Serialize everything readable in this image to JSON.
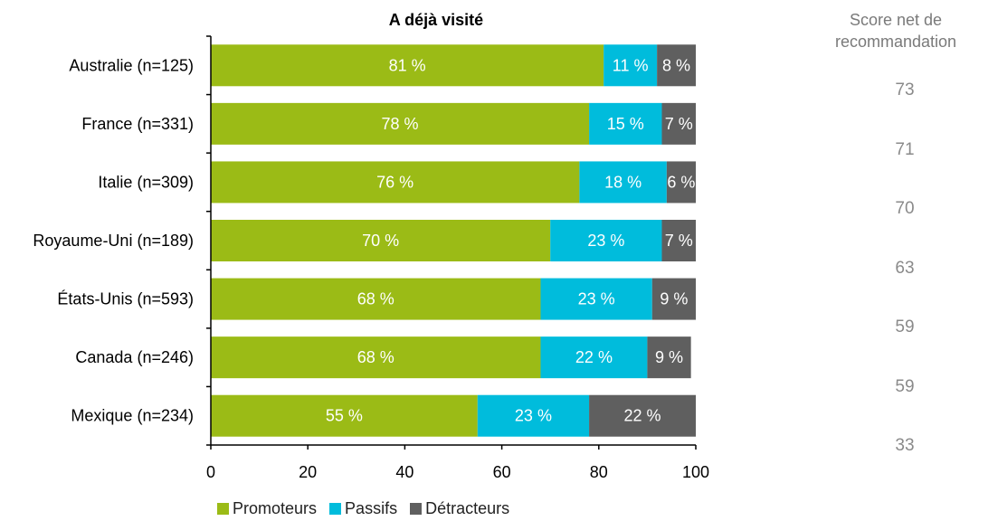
{
  "chart_data": {
    "type": "bar",
    "orientation": "horizontal",
    "stacked": true,
    "title": "A déjà visité",
    "categories": [
      "Australie (n=125)",
      "France (n=331)",
      "Italie (n=309)",
      "Royaume-Uni (n=189)",
      "États-Unis (n=593)",
      "Canada (n=246)",
      "Mexique (n=234)"
    ],
    "series": [
      {
        "name": "Promoteurs",
        "color": "#9bbb16",
        "values": [
          81,
          78,
          76,
          70,
          68,
          68,
          55
        ],
        "labels": [
          "81 %",
          "78 %",
          "76 %",
          "70 %",
          "68 %",
          "68 %",
          "55 %"
        ]
      },
      {
        "name": "Passifs",
        "color": "#00bcdc",
        "values": [
          11,
          15,
          18,
          23,
          23,
          22,
          23
        ],
        "labels": [
          "11 %",
          "15 %",
          "18 %",
          "23 %",
          "23 %",
          "22 %",
          "23 %"
        ]
      },
      {
        "name": "Détracteurs",
        "color": "#5f5f5f",
        "values": [
          8,
          7,
          6,
          7,
          9,
          9,
          22
        ],
        "labels": [
          "8 %",
          "7 %",
          "6 %",
          "7 %",
          "9 %",
          "9 %",
          "22 %"
        ]
      }
    ],
    "xlim": [
      0,
      100
    ],
    "xticks": [
      "0",
      "20",
      "40",
      "60",
      "80",
      "100"
    ],
    "xlabel": "",
    "ylabel": "",
    "grid": false,
    "legend_position": "bottom"
  },
  "nps": {
    "header_line1": "Score net de",
    "header_line2": "recommandation",
    "values": [
      "73",
      "71",
      "70",
      "63",
      "59",
      "59",
      "33"
    ]
  },
  "legend": [
    {
      "label": "Promoteurs",
      "color": "#9bbb16"
    },
    {
      "label": "Passifs",
      "color": "#00bcdc"
    },
    {
      "label": "Détracteurs",
      "color": "#5f5f5f"
    }
  ]
}
